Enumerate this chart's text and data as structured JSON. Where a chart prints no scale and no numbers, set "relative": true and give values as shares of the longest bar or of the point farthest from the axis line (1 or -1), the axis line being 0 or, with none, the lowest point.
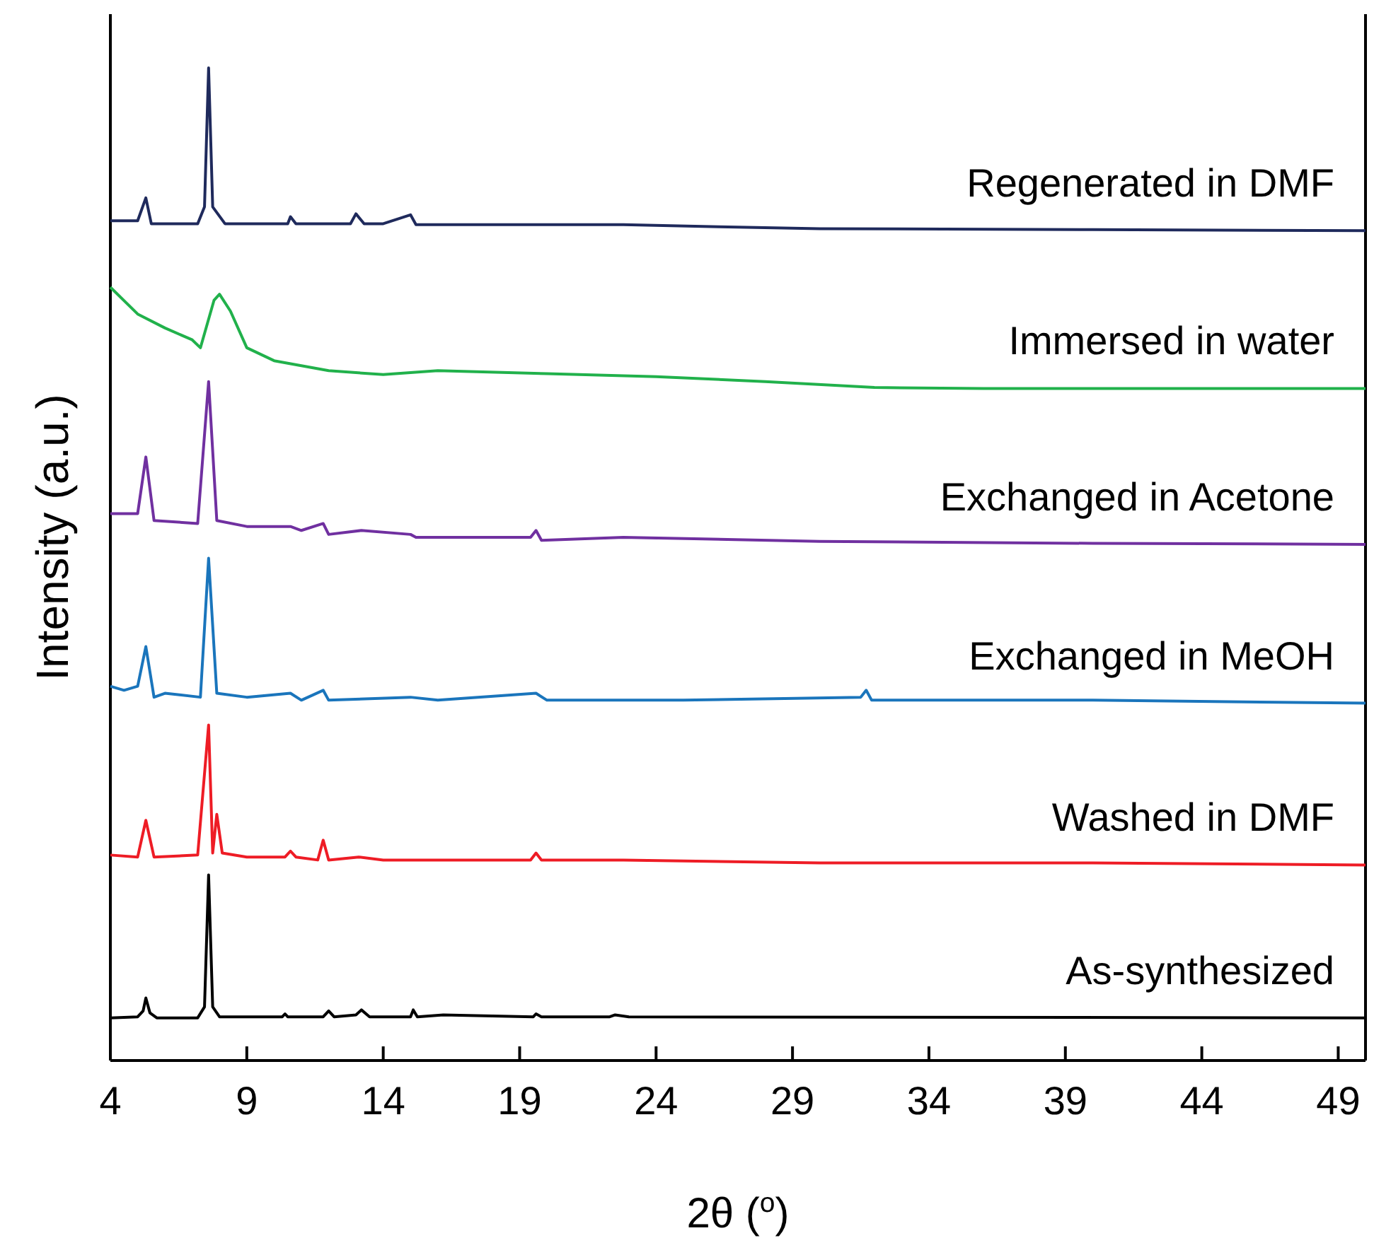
{
  "chart_data": {
    "type": "line",
    "relative": true,
    "xlabel": "2θ ($^{o}$)",
    "ylabel": "Intensity (a.u.)",
    "xlim": [
      4,
      50
    ],
    "xticks": [
      4,
      9,
      14,
      19,
      24,
      29,
      34,
      39,
      44,
      49
    ],
    "grid": false,
    "marker": "none",
    "line_style": "solid",
    "series": [
      {
        "name": "As-synthesized",
        "color": "#000000",
        "x": [
          4,
          5.0,
          5.2,
          5.3,
          5.45,
          5.7,
          7.2,
          7.45,
          7.6,
          7.75,
          8.0,
          10.3,
          10.4,
          10.5,
          11.8,
          12.0,
          12.2,
          13.0,
          13.2,
          13.5,
          15.0,
          15.1,
          15.25,
          16.2,
          19.5,
          19.6,
          19.8,
          22.3,
          22.5,
          23,
          50
        ],
        "values": [
          0.043,
          0.044,
          0.05,
          0.063,
          0.048,
          0.043,
          0.043,
          0.054,
          0.187,
          0.054,
          0.044,
          0.044,
          0.047,
          0.044,
          0.044,
          0.05,
          0.044,
          0.046,
          0.051,
          0.044,
          0.044,
          0.051,
          0.044,
          0.046,
          0.044,
          0.047,
          0.044,
          0.044,
          0.046,
          0.044,
          0.043
        ]
      },
      {
        "name": "Washed in DMF",
        "color": "#ee1c25",
        "x": [
          4,
          5.0,
          5.3,
          5.6,
          7.2,
          7.6,
          7.75,
          7.9,
          8.1,
          9,
          10.4,
          10.6,
          10.8,
          11.6,
          11.8,
          12.0,
          13.1,
          14,
          15,
          16,
          19.4,
          19.6,
          19.8,
          22.8,
          30,
          40,
          50
        ],
        "values": [
          0.207,
          0.205,
          0.242,
          0.205,
          0.207,
          0.338,
          0.209,
          0.248,
          0.209,
          0.205,
          0.205,
          0.211,
          0.205,
          0.202,
          0.222,
          0.202,
          0.205,
          0.202,
          0.202,
          0.202,
          0.202,
          0.209,
          0.202,
          0.202,
          0.199,
          0.199,
          0.197
        ]
      },
      {
        "name": "Exchanged in MeOH",
        "color": "#1a75bc",
        "x": [
          4,
          4.5,
          5.0,
          5.3,
          5.6,
          6,
          7.3,
          7.6,
          7.9,
          9,
          10.6,
          11,
          11.8,
          12,
          15,
          16,
          19.6,
          20,
          25,
          31.5,
          31.7,
          31.9,
          40,
          50
        ],
        "values": [
          0.377,
          0.373,
          0.377,
          0.417,
          0.366,
          0.37,
          0.366,
          0.506,
          0.37,
          0.366,
          0.37,
          0.363,
          0.373,
          0.363,
          0.366,
          0.363,
          0.37,
          0.363,
          0.363,
          0.366,
          0.373,
          0.363,
          0.363,
          0.36
        ]
      },
      {
        "name": "Exchanged in Acetone",
        "color": "#7030a0",
        "x": [
          4,
          5.0,
          5.3,
          5.6,
          7.2,
          7.6,
          7.9,
          9,
          10.6,
          11,
          11.8,
          12,
          13.2,
          15,
          15.2,
          19.4,
          19.6,
          19.8,
          22.8,
          30,
          40,
          50
        ],
        "values": [
          0.551,
          0.551,
          0.608,
          0.544,
          0.541,
          0.684,
          0.544,
          0.538,
          0.538,
          0.534,
          0.541,
          0.53,
          0.534,
          0.53,
          0.527,
          0.527,
          0.534,
          0.524,
          0.527,
          0.523,
          0.521,
          0.52
        ]
      },
      {
        "name": "Immersed in water",
        "color": "#21b14b",
        "x": [
          4,
          5,
          6,
          7,
          7.3,
          7.8,
          8.0,
          8.4,
          9,
          10,
          12,
          14,
          16,
          20,
          24,
          28,
          32,
          36,
          42,
          50
        ],
        "values": [
          0.779,
          0.752,
          0.738,
          0.726,
          0.718,
          0.766,
          0.772,
          0.755,
          0.718,
          0.705,
          0.695,
          0.691,
          0.695,
          0.692,
          0.689,
          0.684,
          0.678,
          0.677,
          0.677,
          0.677
        ]
      },
      {
        "name": "Regenerated in DMF",
        "color": "#1f2a5c",
        "x": [
          4,
          5.0,
          5.3,
          5.5,
          7.2,
          7.45,
          7.6,
          7.75,
          8.2,
          10.5,
          10.6,
          10.8,
          12.8,
          13.0,
          13.3,
          14,
          15,
          15.2,
          19.6,
          22.8,
          26.3,
          30,
          40,
          50
        ],
        "values": [
          0.846,
          0.846,
          0.869,
          0.843,
          0.843,
          0.86,
          1,
          0.86,
          0.843,
          0.843,
          0.85,
          0.843,
          0.843,
          0.853,
          0.843,
          0.843,
          0.852,
          0.842,
          0.842,
          0.842,
          0.84,
          0.838,
          0.837,
          0.836
        ]
      }
    ]
  }
}
